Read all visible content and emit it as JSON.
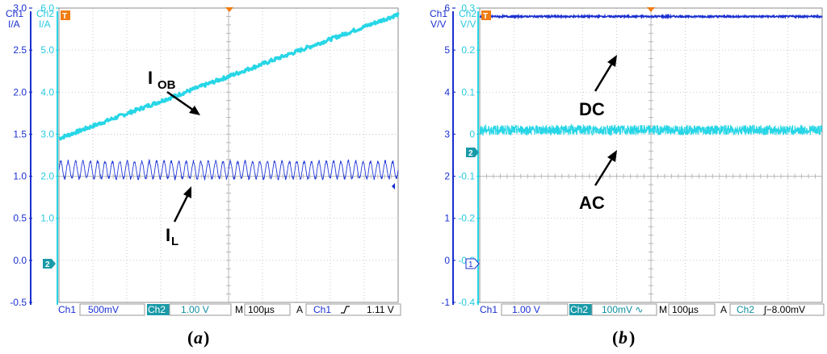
{
  "colors": {
    "ch1": "#1a2fd0",
    "ch2": "#27d6e6",
    "ch2_dark": "#0e8fa0",
    "grid": "#b9b9b9",
    "orange": "#f07c12",
    "text_dark": "#1a2fd0"
  },
  "chart_data": [
    {
      "type": "line",
      "caption_open": "(",
      "caption_letter": "a",
      "caption_close": ")",
      "ch1_header": {
        "name": "Ch1",
        "unit": "I/A"
      },
      "ch2_header": {
        "name": "Ch2",
        "unit": "I/A"
      },
      "ch1_ticks": [
        "3.0",
        "2.5",
        "2.0",
        "1.5",
        "1.0",
        "0.5",
        "0.0",
        "-0.5"
      ],
      "ch2_ticks": [
        "6.0",
        "5.0",
        "4.0",
        "3.0",
        "2.0",
        "1.0"
      ],
      "ch1_ylim": [
        -0.5,
        3.0
      ],
      "ch2_ylim": [
        -1.0,
        6.0
      ],
      "divisions_x": 10,
      "divisions_y": 7,
      "series": [
        {
          "name": "IOB",
          "channel": "ch2",
          "kind": "ramp",
          "start": 2.9,
          "end": 5.85,
          "noise": 0.09
        },
        {
          "name": "IL",
          "channel": "ch2",
          "kind": "ripple",
          "center": 2.15,
          "amplitude": 0.22,
          "cycles": 46
        }
      ],
      "annotations": [
        {
          "main": "I",
          "sub": "OB"
        },
        {
          "main": "I",
          "sub": "L"
        }
      ],
      "status": {
        "ch1_label": "Ch1",
        "ch1_scale": "500mV",
        "ch2_label": "Ch2",
        "ch2_scale": "1.00 V",
        "m_label": "M",
        "timebase": "100µs",
        "a_label": "A",
        "trig_ch": "Ch1",
        "trig_level": "1.11 V"
      },
      "ch2_ground_marker": "2",
      "trigger_marker": "T"
    },
    {
      "type": "line",
      "caption_open": "(",
      "caption_letter": "b",
      "caption_close": ")",
      "ch1_header": {
        "name": "Ch1",
        "unit": "V/V"
      },
      "ch2_header": {
        "name": "Ch2",
        "unit": "V/V"
      },
      "ch1_ticks": [
        "6",
        "5",
        "4",
        "3",
        "2",
        "1",
        "0",
        "-1"
      ],
      "ch2_ticks": [
        "0.3",
        "0.2",
        "0.1",
        "0",
        "-0.1",
        "-0.2",
        "-0.3",
        "-0.4"
      ],
      "ch1_ylim": [
        -1,
        6
      ],
      "ch2_ylim": [
        -0.4,
        0.3
      ],
      "divisions_x": 10,
      "divisions_y": 7,
      "series": [
        {
          "name": "DC",
          "channel": "ch1",
          "kind": "flat",
          "center": 5.8,
          "noise": 0.04
        },
        {
          "name": "AC",
          "channel": "ch2",
          "kind": "noisy",
          "center": 0.01,
          "noise": 0.012
        }
      ],
      "annotations": [
        {
          "main": "DC",
          "sub": ""
        },
        {
          "main": "AC",
          "sub": ""
        }
      ],
      "status": {
        "ch1_label": "Ch1",
        "ch1_scale": "1.00 V",
        "ch2_label": "Ch2",
        "ch2_scale": "100mV ∿",
        "m_label": "M",
        "timebase": "100µs",
        "a_label": "A",
        "trig_ch": "Ch2",
        "trig_level": "ʃ−8.00mV"
      },
      "ch2_ground_marker": "2",
      "ch1_ground_marker": "1",
      "trigger_marker": "T"
    }
  ]
}
